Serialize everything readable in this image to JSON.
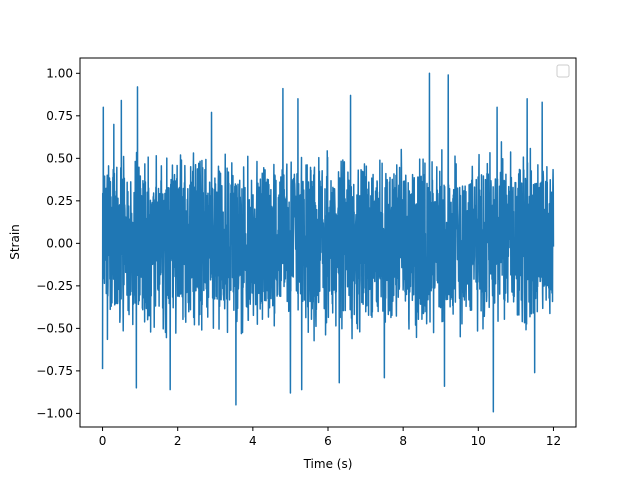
{
  "chart_data": {
    "type": "line",
    "title": "",
    "xlabel": "Time (s)",
    "ylabel": "Strain",
    "xlim": [
      -0.6,
      12.6
    ],
    "ylim": [
      -1.08,
      1.09
    ],
    "x_ticks": [
      0,
      2,
      4,
      6,
      8,
      10,
      12
    ],
    "x_tick_labels": [
      "0",
      "2",
      "4",
      "6",
      "8",
      "10",
      "12"
    ],
    "y_ticks": [
      -1.0,
      -0.75,
      -0.5,
      -0.25,
      0.0,
      0.25,
      0.5,
      0.75,
      1.0
    ],
    "y_tick_labels": [
      "−1.00",
      "−0.75",
      "−0.50",
      "−0.25",
      "0.00",
      "0.25",
      "0.50",
      "0.75",
      "1.00"
    ],
    "grid": false,
    "legend": "top-right, empty",
    "series": [
      {
        "color": "#1f77b4",
        "x_start": 0,
        "x_end": 12,
        "typical_envelope": [
          -0.5,
          0.55
        ],
        "peaks": [
          {
            "x": 0.02,
            "y": 0.8
          },
          {
            "x": 0.3,
            "y": 0.7
          },
          {
            "x": 0.5,
            "y": 0.84
          },
          {
            "x": 0.93,
            "y": 0.92
          },
          {
            "x": 1.8,
            "y": 0.72
          },
          {
            "x": 2.9,
            "y": 0.77
          },
          {
            "x": 4.8,
            "y": 0.91
          },
          {
            "x": 5.2,
            "y": 0.85
          },
          {
            "x": 6.6,
            "y": 0.87
          },
          {
            "x": 8.7,
            "y": 1.0
          },
          {
            "x": 9.2,
            "y": 0.99
          },
          {
            "x": 10.5,
            "y": 0.8
          },
          {
            "x": 11.3,
            "y": 0.85
          },
          {
            "x": 11.7,
            "y": 0.83
          }
        ],
        "troughs": [
          {
            "x": 0.0,
            "y": -0.74
          },
          {
            "x": 0.9,
            "y": -0.85
          },
          {
            "x": 1.8,
            "y": -0.86
          },
          {
            "x": 3.55,
            "y": -0.95
          },
          {
            "x": 5.0,
            "y": -0.88
          },
          {
            "x": 5.3,
            "y": -0.86
          },
          {
            "x": 6.3,
            "y": -0.82
          },
          {
            "x": 7.5,
            "y": -0.79
          },
          {
            "x": 9.1,
            "y": -0.84
          },
          {
            "x": 10.4,
            "y": -0.99
          },
          {
            "x": 11.5,
            "y": -0.76
          }
        ]
      }
    ]
  }
}
